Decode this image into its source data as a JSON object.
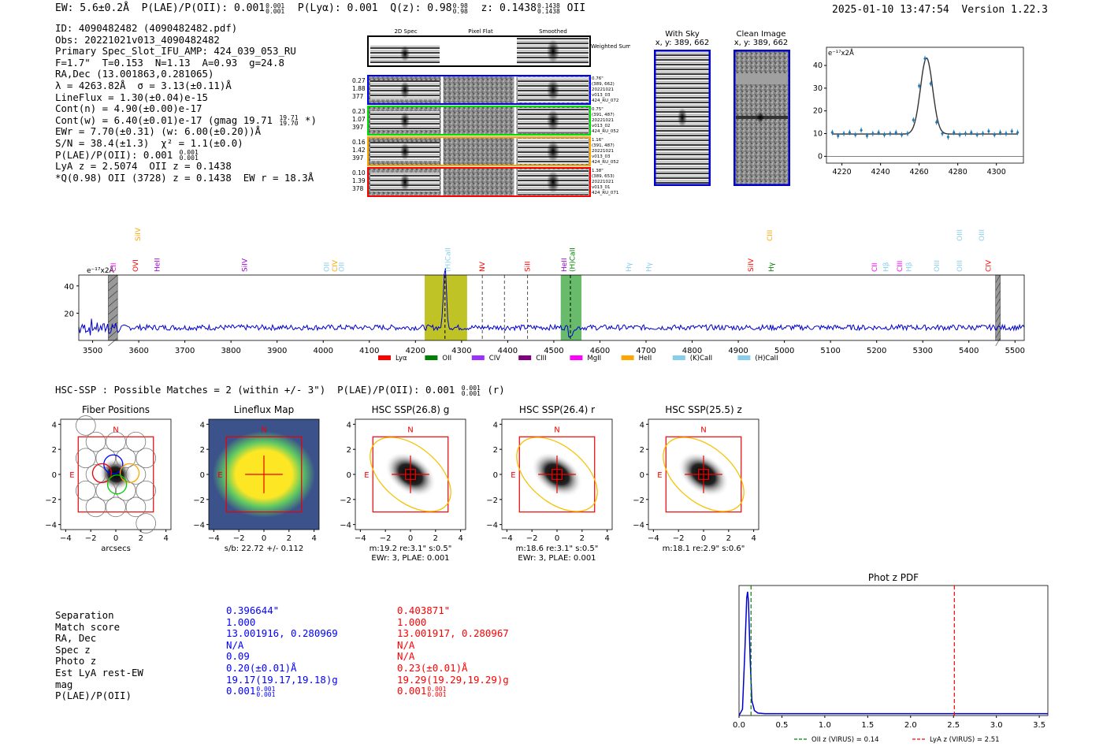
{
  "header": {
    "ew": "EW: 5.6±0.2Å",
    "plae_label": "P(LAE)/P(OII): 0.001",
    "plae_sup": "0.001",
    "plae_sub": "0.001",
    "plya": "P(Lyα): 0.001",
    "qz_label": "Q(z): 0.98",
    "qz_sup": "0.98",
    "qz_sub": "0.98",
    "z_label": "z: 0.1438",
    "z_sup": "0.1438",
    "z_sub": "0.1438",
    "z_line": "OII",
    "timestamp": "2025-01-10 13:47:54",
    "version": "Version 1.22.3"
  },
  "info": {
    "id": "ID: 4090482482 (4090482482.pdf)",
    "obs": "Obs: 20221021v013_4090482482",
    "primary": "Primary Spec_Slot_IFU_AMP: 424_039_053_RU",
    "fwhm": "F=1.7\"  T=0.153  N=1.13  A=0.93  g=24.8",
    "radec": "RA,Dec (13.001863,0.281065)",
    "lambda": "λ = 4263.82Å  σ = 3.13(±0.11)Å",
    "lineflux": "LineFlux = 1.30(±0.04)e-15",
    "contn": "Cont(n) = 4.90(±0.00)e-17",
    "contw": "Cont(w) = 6.40(±0.01)e-17 (gmag 19.71",
    "contw_sup": "19.71",
    "contw_sub": "19.70",
    "contw_end": "*)",
    "ewr": "EWr = 7.70(±0.31) (w: 6.00(±0.20))Å",
    "sn": "S/N = 38.4(±1.3)  χ² = 1.1(±0.0)",
    "plae": "P(LAE)/P(OII): 0.001",
    "plae_sup": "0.001",
    "plae_sub": "0.001",
    "lya": "LyA z = 2.5074  OII z = 0.1438",
    "q": "*Q(0.98) OII (3728) z = 0.1438  EW r = 18.3Å"
  },
  "cutouts": {
    "col_labels": [
      "2D Spec",
      "Pixel Flat",
      "Smoothed"
    ],
    "weighted_sum": "Weighted Sum",
    "rows": [
      {
        "left": [
          "0.27",
          "1.88",
          "377"
        ],
        "right": [
          "0.76\"",
          "(389, 662)",
          "20221021",
          "v013_03",
          "424_RU_072"
        ],
        "color": "#0000ff"
      },
      {
        "left": [
          "0.23",
          "1.07",
          "397"
        ],
        "right": [
          "0.75\"",
          "(391, 487)",
          "20221021",
          "v013_02",
          "424_RU_052"
        ],
        "color": "#00dd00"
      },
      {
        "left": [
          "0.16",
          "1.42",
          "397"
        ],
        "right": [
          "1.16\"",
          "(391, 487)",
          "20221021",
          "v013_03",
          "424_RU_052"
        ],
        "color": "#ffa500"
      },
      {
        "left": [
          "0.10",
          "1.39",
          "378"
        ],
        "right": [
          "1.38\"",
          "(389, 653)",
          "20221021",
          "v013_01",
          "424_RU_071"
        ],
        "color": "#ff0000"
      }
    ],
    "with_sky": "With Sky",
    "with_sky_xy": "x, y: 389, 662",
    "clean": "Clean Image",
    "clean_xy": "x, y: 389, 662"
  },
  "hsc": {
    "line": "HSC-SSP : Possible Matches = 2 (within +/- 3\")  P(LAE)/P(OII): 0.001",
    "sup": "0.001",
    "sub": "0.001",
    "band": "(r)"
  },
  "images": [
    {
      "title": "Fiber Positions",
      "caption1": "arcsecs",
      "caption2": ""
    },
    {
      "title": "Lineflux Map",
      "caption1": "s/b: 22.72 +/- 0.112",
      "caption2": ""
    },
    {
      "title": "HSC SSP(26.8) g",
      "caption1": "m:19.2  re:3.1\"  s:0.5\"",
      "caption2": "EWr: 3, PLAE: 0.001"
    },
    {
      "title": "HSC SSP(26.4) r",
      "caption1": "m:18.6  re:3.1\"  s:0.5\"",
      "caption2": "EWr: 3, PLAE: 0.001"
    },
    {
      "title": "HSC SSP(25.5) z",
      "caption1": "m:18.1  re:2.9\"  s:0.6\"",
      "caption2": ""
    }
  ],
  "image_ticks": [
    "4",
    "2",
    "0",
    "−2",
    "−4"
  ],
  "image_letters": {
    "n": "N",
    "e": "E"
  },
  "matches": {
    "labels": [
      "Separation",
      "Match score",
      "RA, Dec",
      "Spec z",
      "Photo z",
      "Est LyA rest-EW",
      "mag",
      "P(LAE)/P(OII)"
    ],
    "blue": [
      "0.396644\"",
      "1.000",
      "13.001916, 0.280969",
      "N/A",
      "0.09",
      "0.20(±0.01)Å",
      "19.17(19.17,19.18)g",
      "0.001"
    ],
    "red": [
      "0.403871\"",
      "1.000",
      "13.001917, 0.280967",
      "N/A",
      "N/A",
      "0.23(±0.01)Å",
      "19.29(19.29,19.29)g",
      "0.001"
    ],
    "plae_sup": "0.001",
    "plae_sub": "0.001"
  },
  "chart_data": [
    {
      "type": "scatter",
      "name": "line fit",
      "title": "",
      "ylabel": "e⁻¹⁷x2Å",
      "xlim": [
        4212,
        4314
      ],
      "ylim": [
        -3,
        48
      ],
      "xticks": [
        4220,
        4240,
        4260,
        4280,
        4300
      ],
      "yticks": [
        0,
        10,
        20,
        30,
        40
      ],
      "x": [
        4215,
        4218,
        4221,
        4224,
        4227,
        4230,
        4233,
        4236,
        4239,
        4242,
        4245,
        4248,
        4251,
        4254,
        4257,
        4260,
        4263,
        4266,
        4269,
        4272,
        4275,
        4278,
        4281,
        4284,
        4287,
        4290,
        4293,
        4296,
        4299,
        4302,
        4305,
        4308,
        4311
      ],
      "y": [
        10.5,
        9,
        10,
        10.5,
        9.5,
        11.5,
        9,
        10,
        10.5,
        9.5,
        10,
        10.5,
        9.5,
        10,
        16,
        31,
        43,
        32,
        15,
        10,
        8.5,
        10.5,
        9.5,
        10,
        10.5,
        9.5,
        10,
        11,
        9.5,
        10.5,
        10,
        11,
        10.5
      ],
      "fit": {
        "center": 4263.82,
        "sigma": 3.13,
        "continuum": 9.8,
        "amplitude": 33.5
      }
    },
    {
      "type": "line",
      "name": "full spectrum",
      "title": "",
      "ylabel": "e⁻¹⁷x2Å",
      "xlim": [
        3470,
        5520
      ],
      "ylim": [
        0,
        48
      ],
      "xticks": [
        3500,
        3600,
        3700,
        3800,
        3900,
        4000,
        4100,
        4200,
        4300,
        4400,
        4500,
        4600,
        4700,
        4800,
        4900,
        5000,
        5100,
        5200,
        5300,
        5400,
        5500
      ],
      "yticks": [
        20,
        40
      ],
      "continuum": 9.5,
      "peak": {
        "x": 4264,
        "y": 45
      },
      "highlight_spans": [
        {
          "from": 4220,
          "to": 4312,
          "color": "#b5b800"
        },
        {
          "from": 4515,
          "to": 4560,
          "color": "#4caf50"
        }
      ],
      "hatched_spans": [
        {
          "from": 3534,
          "to": 3554
        },
        {
          "from": 5458,
          "to": 5468
        }
      ],
      "dashed_lines": [
        {
          "x": 4264,
          "color": "#000000"
        },
        {
          "x": 4345,
          "color": "#555555"
        },
        {
          "x": 4393,
          "color": "#555555"
        },
        {
          "x": 4443,
          "color": "#555555"
        },
        {
          "x": 4536,
          "color": "#000000"
        }
      ],
      "line_labels": [
        {
          "label": "CII",
          "x": 3545,
          "color": "#ff00ff",
          "row": 1
        },
        {
          "label": "OVI",
          "x": 3593,
          "color": "#ff0000",
          "row": 1
        },
        {
          "label": "SiIV",
          "x": 3598,
          "color": "#ffa500",
          "row": 0
        },
        {
          "label": "HeII",
          "x": 3640,
          "color": "#9400d3",
          "row": 1
        },
        {
          "label": "SiIV",
          "x": 3830,
          "color": "#9400d3",
          "row": 1
        },
        {
          "label": "OII",
          "x": 4007,
          "color": "#87ceeb",
          "row": 1
        },
        {
          "label": "CIV",
          "x": 4025,
          "color": "#ffa500",
          "row": 1
        },
        {
          "label": "OII",
          "x": 4040,
          "color": "#87ceeb",
          "row": 1
        },
        {
          "label": "(H)CaII",
          "x": 4270,
          "color": "#87ceeb",
          "row": 1
        },
        {
          "label": "NV",
          "x": 4345,
          "color": "#ff0000",
          "row": 1
        },
        {
          "label": "SiII",
          "x": 4443,
          "color": "#ff0000",
          "row": 1
        },
        {
          "label": "HeII",
          "x": 4522,
          "color": "#9400d3",
          "row": 1
        },
        {
          "label": "(H)CaII",
          "x": 4540,
          "color": "#008000",
          "row": 1
        },
        {
          "label": "Hγ",
          "x": 4662,
          "color": "#87ceeb",
          "row": 1
        },
        {
          "label": "Hγ",
          "x": 4706,
          "color": "#87ceeb",
          "row": 1
        },
        {
          "label": "SiIV",
          "x": 4927,
          "color": "#ff0000",
          "row": 1
        },
        {
          "label": "CIII",
          "x": 4968,
          "color": "#ffa500",
          "row": 0
        },
        {
          "label": "Hγ",
          "x": 4972,
          "color": "#008000",
          "row": 1
        },
        {
          "label": "CII",
          "x": 5195,
          "color": "#ff00ff",
          "row": 1
        },
        {
          "label": "Hβ",
          "x": 5220,
          "color": "#87ceeb",
          "row": 1
        },
        {
          "label": "CIII",
          "x": 5250,
          "color": "#ff00ff",
          "row": 1
        },
        {
          "label": "Hβ",
          "x": 5270,
          "color": "#87ceeb",
          "row": 1
        },
        {
          "label": "OIII",
          "x": 5330,
          "color": "#87ceeb",
          "row": 1
        },
        {
          "label": "OIII",
          "x": 5380,
          "color": "#87ceeb",
          "row": 1
        },
        {
          "label": "OIII",
          "x": 5380,
          "color": "#87ceeb",
          "row": 0
        },
        {
          "label": "OIII",
          "x": 5428,
          "color": "#87ceeb",
          "row": 0
        },
        {
          "label": "CIV",
          "x": 5442,
          "color": "#ff0000",
          "row": 1
        }
      ],
      "legend": [
        {
          "label": "Lyα",
          "color": "#ff0000"
        },
        {
          "label": "OII",
          "color": "#008000"
        },
        {
          "label": "CIV",
          "color": "#9b30ff"
        },
        {
          "label": "CIII",
          "color": "#800080"
        },
        {
          "label": "MgII",
          "color": "#ff00ff"
        },
        {
          "label": "HeII",
          "color": "#ffa500"
        },
        {
          "label": "(K)CaII",
          "color": "#87ceeb"
        },
        {
          "label": "(H)CaII",
          "color": "#87ceeb"
        }
      ]
    },
    {
      "type": "line",
      "name": "phot z pdf",
      "title": "Phot z PDF",
      "xlim": [
        0,
        3.6
      ],
      "ylim": [
        0,
        1.05
      ],
      "xticks": [
        0.0,
        0.5,
        1.0,
        1.5,
        2.0,
        2.5,
        3.0,
        3.5
      ],
      "x": [
        0.0,
        0.04,
        0.07,
        0.09,
        0.1,
        0.11,
        0.13,
        0.15,
        0.18,
        0.22,
        0.3,
        1.0,
        3.6
      ],
      "y": [
        0.0,
        0.05,
        0.55,
        0.95,
        1.0,
        0.92,
        0.45,
        0.12,
        0.04,
        0.02,
        0.015,
        0.015,
        0.015
      ],
      "vlines": [
        {
          "x": 0.14,
          "color": "#008000",
          "label": "OII z (VIRUS) = 0.14"
        },
        {
          "x": 2.51,
          "color": "#ff0000",
          "label": "LyA z (VIRUS) = 2.51"
        }
      ]
    }
  ]
}
